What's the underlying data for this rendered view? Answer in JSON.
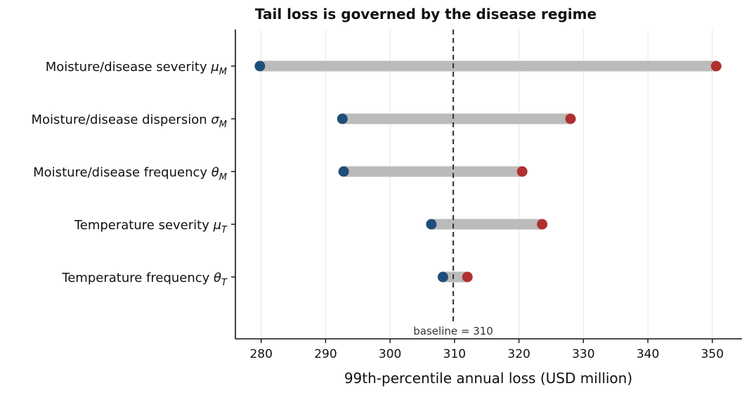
{
  "chart_data": {
    "type": "dumbbell",
    "title": "Tail loss is governed by the disease regime",
    "xlabel": "99th-percentile annual loss (USD million)",
    "ylabel": "",
    "xlim": [
      276,
      354.6
    ],
    "xticks": [
      280,
      290,
      300,
      310,
      320,
      330,
      340,
      350
    ],
    "grid": "vertical",
    "baseline": {
      "value": 309.8,
      "label": "baseline = 310"
    },
    "colors": {
      "low": "#1f4e7a",
      "high": "#b03030",
      "bar": "#bbbbbb",
      "grid": "#e6e6e6",
      "baseline": "#333333"
    },
    "parameters": [
      {
        "label": "Moisture/disease severity",
        "symbol": "μ",
        "subscript": "M",
        "low": 279.8,
        "high": 350.6
      },
      {
        "label": "Moisture/disease dispersion",
        "symbol": "σ",
        "subscript": "M",
        "low": 292.6,
        "high": 328.0
      },
      {
        "label": "Moisture/disease frequency",
        "symbol": "θ",
        "subscript": "M",
        "low": 292.8,
        "high": 320.5
      },
      {
        "label": "Temperature severity",
        "symbol": "μ",
        "subscript": "T",
        "low": 306.4,
        "high": 323.6
      },
      {
        "label": "Temperature frequency",
        "symbol": "θ",
        "subscript": "T",
        "low": 308.2,
        "high": 312.0
      }
    ]
  }
}
